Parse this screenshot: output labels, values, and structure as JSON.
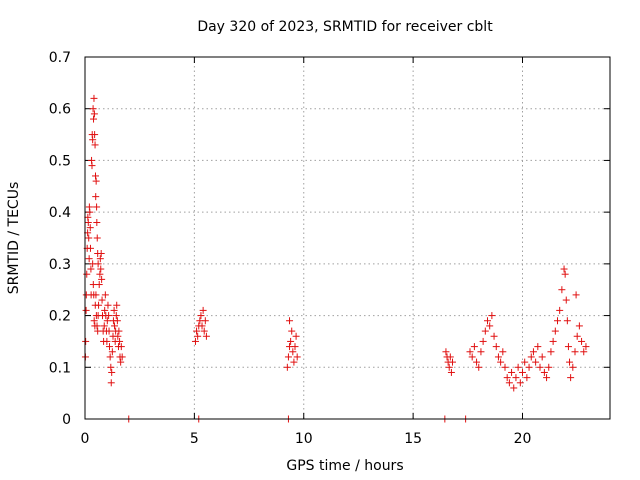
{
  "chart_data": {
    "type": "scatter",
    "title": "Day 320 of 2023, SRMTID for receiver cblt",
    "xlabel": "GPS time / hours",
    "ylabel": "SRMTID / TECUs",
    "xlim": [
      0,
      24
    ],
    "ylim": [
      0,
      0.7
    ],
    "xticks": [
      0,
      5,
      10,
      15,
      20
    ],
    "xtick_labels": [
      "0",
      "5",
      "10",
      "15",
      "20"
    ],
    "yticks": [
      0,
      0.1,
      0.2,
      0.3,
      0.4,
      0.5,
      0.6,
      0.7
    ],
    "ytick_labels": [
      "0",
      "0.1",
      "0.2",
      "0.3",
      "0.4",
      "0.5",
      "0.6",
      "0.7"
    ],
    "grid": true,
    "marker": "plus",
    "color": "#e01010",
    "series": [
      {
        "name": "SRMTID",
        "points": [
          [
            0.02,
            0.12
          ],
          [
            0.03,
            0.15
          ],
          [
            0.05,
            0.21
          ],
          [
            0.06,
            0.24
          ],
          [
            0.08,
            0.28
          ],
          [
            0.1,
            0.33
          ],
          [
            0.12,
            0.36
          ],
          [
            0.13,
            0.39
          ],
          [
            0.15,
            0.38
          ],
          [
            0.17,
            0.35
          ],
          [
            0.19,
            0.31
          ],
          [
            0.2,
            0.41
          ],
          [
            0.22,
            0.4
          ],
          [
            0.24,
            0.37
          ],
          [
            0.25,
            0.33
          ],
          [
            0.27,
            0.29
          ],
          [
            0.28,
            0.24
          ],
          [
            0.3,
            0.5
          ],
          [
            0.32,
            0.49
          ],
          [
            0.33,
            0.55
          ],
          [
            0.35,
            0.54
          ],
          [
            0.37,
            0.6
          ],
          [
            0.39,
            0.58
          ],
          [
            0.41,
            0.62
          ],
          [
            0.43,
            0.59
          ],
          [
            0.44,
            0.55
          ],
          [
            0.46,
            0.53
          ],
          [
            0.48,
            0.47
          ],
          [
            0.49,
            0.43
          ],
          [
            0.51,
            0.46
          ],
          [
            0.53,
            0.41
          ],
          [
            0.54,
            0.38
          ],
          [
            0.56,
            0.35
          ],
          [
            0.58,
            0.32
          ],
          [
            0.6,
            0.3
          ],
          [
            0.35,
            0.3
          ],
          [
            0.38,
            0.26
          ],
          [
            0.4,
            0.24
          ],
          [
            0.42,
            0.19
          ],
          [
            0.45,
            0.18
          ],
          [
            0.47,
            0.22
          ],
          [
            0.5,
            0.24
          ],
          [
            0.52,
            0.2
          ],
          [
            0.55,
            0.18
          ],
          [
            0.58,
            0.17
          ],
          [
            0.6,
            0.2
          ],
          [
            0.62,
            0.22
          ],
          [
            0.65,
            0.26
          ],
          [
            0.68,
            0.28
          ],
          [
            0.7,
            0.31
          ],
          [
            0.72,
            0.29
          ],
          [
            0.74,
            0.32
          ],
          [
            0.76,
            0.27
          ],
          [
            0.78,
            0.23
          ],
          [
            0.8,
            0.2
          ],
          [
            0.83,
            0.17
          ],
          [
            0.85,
            0.15
          ],
          [
            0.88,
            0.18
          ],
          [
            0.9,
            0.21
          ],
          [
            0.93,
            0.24
          ],
          [
            0.95,
            0.2
          ],
          [
            0.98,
            0.17
          ],
          [
            1.0,
            0.15
          ],
          [
            1.02,
            0.19
          ],
          [
            1.05,
            0.22
          ],
          [
            1.08,
            0.2
          ],
          [
            1.1,
            0.17
          ],
          [
            1.12,
            0.14
          ],
          [
            1.15,
            0.12
          ],
          [
            1.18,
            0.1
          ],
          [
            1.2,
            0.07
          ],
          [
            1.22,
            0.09
          ],
          [
            1.25,
            0.13
          ],
          [
            1.28,
            0.16
          ],
          [
            1.3,
            0.19
          ],
          [
            1.33,
            0.21
          ],
          [
            1.35,
            0.18
          ],
          [
            1.38,
            0.15
          ],
          [
            1.4,
            0.17
          ],
          [
            1.43,
            0.2
          ],
          [
            1.45,
            0.22
          ],
          [
            1.48,
            0.19
          ],
          [
            1.5,
            0.16
          ],
          [
            1.53,
            0.14
          ],
          [
            1.55,
            0.17
          ],
          [
            1.58,
            0.15
          ],
          [
            1.6,
            0.12
          ],
          [
            1.63,
            0.11
          ],
          [
            1.66,
            0.14
          ],
          [
            1.7,
            0.12
          ],
          [
            2.0,
            0.0
          ],
          [
            5.05,
            0.15
          ],
          [
            5.1,
            0.17
          ],
          [
            5.15,
            0.16
          ],
          [
            5.2,
            0.18
          ],
          [
            5.25,
            0.19
          ],
          [
            5.3,
            0.2
          ],
          [
            5.35,
            0.18
          ],
          [
            5.4,
            0.21
          ],
          [
            5.45,
            0.17
          ],
          [
            5.5,
            0.19
          ],
          [
            5.55,
            0.16
          ],
          [
            5.2,
            0.0
          ],
          [
            9.25,
            0.1
          ],
          [
            9.3,
            0.12
          ],
          [
            9.35,
            0.14
          ],
          [
            9.4,
            0.15
          ],
          [
            9.45,
            0.17
          ],
          [
            9.5,
            0.13
          ],
          [
            9.55,
            0.11
          ],
          [
            9.6,
            0.14
          ],
          [
            9.65,
            0.16
          ],
          [
            9.7,
            0.12
          ],
          [
            9.35,
            0.19
          ],
          [
            9.3,
            0.0
          ],
          [
            16.5,
            0.13
          ],
          [
            16.55,
            0.12
          ],
          [
            16.6,
            0.11
          ],
          [
            16.65,
            0.1
          ],
          [
            16.7,
            0.12
          ],
          [
            16.75,
            0.09
          ],
          [
            16.8,
            0.11
          ],
          [
            16.45,
            0.0
          ],
          [
            17.4,
            0.0
          ],
          [
            17.6,
            0.13
          ],
          [
            17.7,
            0.12
          ],
          [
            17.8,
            0.14
          ],
          [
            17.9,
            0.11
          ],
          [
            18.0,
            0.1
          ],
          [
            18.1,
            0.13
          ],
          [
            18.2,
            0.15
          ],
          [
            18.3,
            0.17
          ],
          [
            18.4,
            0.19
          ],
          [
            18.5,
            0.18
          ],
          [
            18.6,
            0.2
          ],
          [
            18.7,
            0.16
          ],
          [
            18.8,
            0.14
          ],
          [
            18.9,
            0.12
          ],
          [
            19.0,
            0.11
          ],
          [
            19.1,
            0.13
          ],
          [
            19.2,
            0.1
          ],
          [
            19.3,
            0.08
          ],
          [
            19.4,
            0.07
          ],
          [
            19.5,
            0.09
          ],
          [
            19.6,
            0.06
          ],
          [
            19.7,
            0.08
          ],
          [
            19.8,
            0.1
          ],
          [
            19.9,
            0.07
          ],
          [
            20.0,
            0.09
          ],
          [
            20.1,
            0.11
          ],
          [
            20.2,
            0.08
          ],
          [
            20.3,
            0.1
          ],
          [
            20.4,
            0.12
          ],
          [
            20.5,
            0.13
          ],
          [
            20.6,
            0.11
          ],
          [
            20.7,
            0.14
          ],
          [
            20.8,
            0.1
          ],
          [
            20.9,
            0.12
          ],
          [
            21.0,
            0.09
          ],
          [
            21.1,
            0.08
          ],
          [
            21.2,
            0.1
          ],
          [
            21.3,
            0.13
          ],
          [
            21.4,
            0.15
          ],
          [
            21.5,
            0.17
          ],
          [
            21.6,
            0.19
          ],
          [
            21.7,
            0.21
          ],
          [
            21.8,
            0.25
          ],
          [
            21.9,
            0.29
          ],
          [
            21.95,
            0.28
          ],
          [
            22.0,
            0.23
          ],
          [
            22.05,
            0.19
          ],
          [
            22.1,
            0.14
          ],
          [
            22.15,
            0.11
          ],
          [
            22.2,
            0.08
          ],
          [
            22.3,
            0.1
          ],
          [
            22.4,
            0.13
          ],
          [
            22.5,
            0.16
          ],
          [
            22.6,
            0.18
          ],
          [
            22.7,
            0.15
          ],
          [
            22.8,
            0.13
          ],
          [
            22.9,
            0.14
          ],
          [
            22.45,
            0.24
          ]
        ]
      }
    ]
  }
}
